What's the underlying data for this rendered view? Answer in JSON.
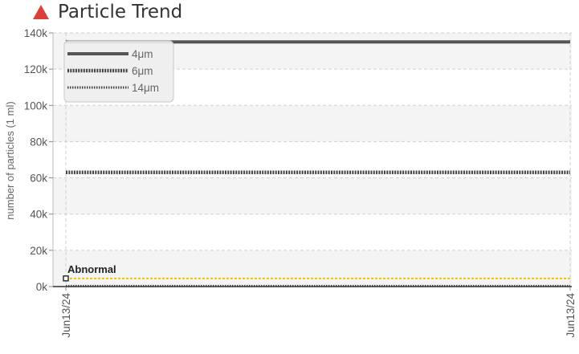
{
  "header": {
    "title": "Particle Trend",
    "icon": "warning-triangle-icon",
    "icon_color": "#d9403a"
  },
  "chart_data": {
    "type": "line",
    "ylabel": "number of particles (1 ml)",
    "ylim": [
      0,
      140000
    ],
    "y_ticks": [
      "0k",
      "20k",
      "40k",
      "60k",
      "80k",
      "100k",
      "120k",
      "140k"
    ],
    "x": [
      "Jun13/24",
      "Jun13/24"
    ],
    "grid": true,
    "legend_position": "top-left",
    "series": [
      {
        "name": "4μm",
        "values": [
          135000,
          135000
        ],
        "style": "solid",
        "color": "#555555"
      },
      {
        "name": "6μm",
        "values": [
          63000,
          63000
        ],
        "style": "dense-dotted",
        "color": "#444444"
      },
      {
        "name": "14μm",
        "values": [
          300,
          300
        ],
        "style": "fine-dotted",
        "color": "#444444"
      }
    ],
    "threshold": {
      "label": "Abnormal",
      "value": 4500,
      "color": "#f2c200"
    }
  }
}
